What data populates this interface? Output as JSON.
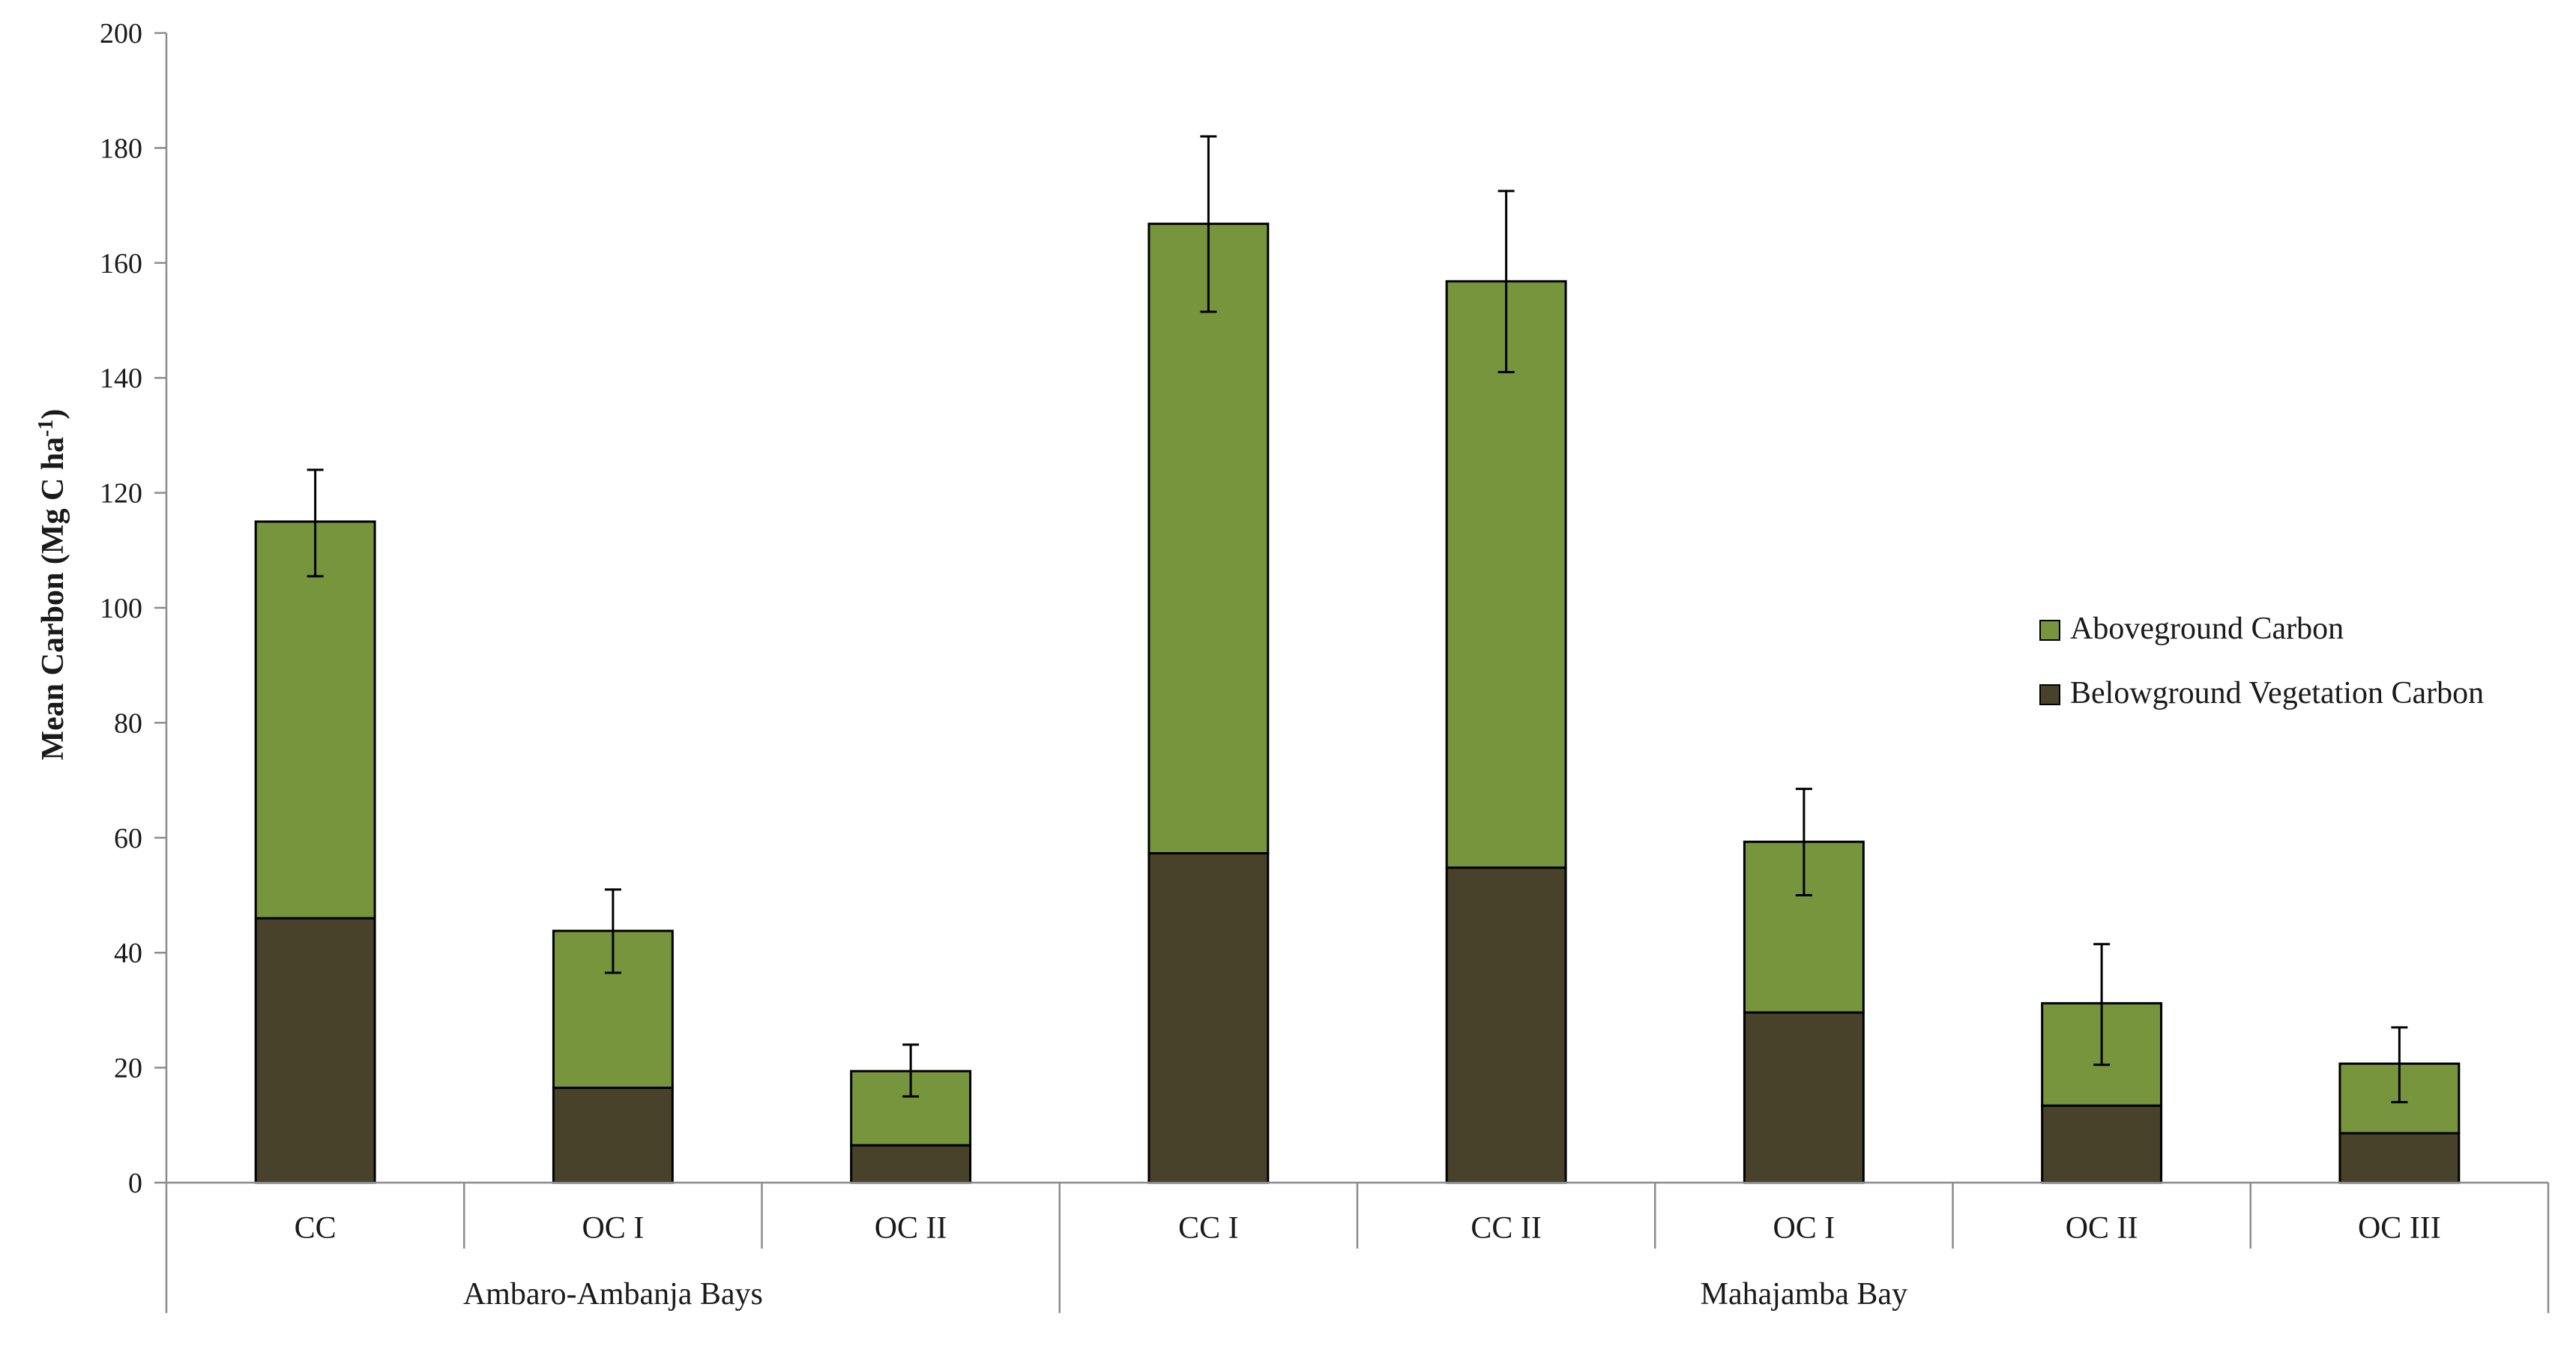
{
  "chart_data": {
    "type": "bar",
    "stacked": true,
    "title": "",
    "xlabel": "",
    "ylabel": "Mean Carbon (Mg C ha",
    "ylabel_superscript": "-1",
    "ylabel_close": ")",
    "ylim": [
      0,
      200
    ],
    "yticks": [
      0,
      20,
      40,
      60,
      80,
      100,
      120,
      140,
      160,
      180,
      200
    ],
    "grid": false,
    "legend_position": "right",
    "categories": [
      "CC",
      "OC I",
      "OC II",
      "CC I",
      "CC II",
      "OC I",
      "OC II",
      "OC III"
    ],
    "groups": [
      {
        "label": "Ambaro-Ambanja Bays",
        "start": 0,
        "end": 2
      },
      {
        "label": "Mahajamba Bay",
        "start": 3,
        "end": 7
      }
    ],
    "series": [
      {
        "name": "Belowground Vegetation Carbon",
        "color": "#48422b",
        "values": [
          46,
          16.5,
          6.5,
          57.3,
          54.8,
          29.6,
          13.4,
          8.6
        ]
      },
      {
        "name": "Aboveground Carbon",
        "color": "#76953d",
        "values": [
          69,
          27.3,
          12.9,
          109.5,
          102,
          29.7,
          17.8,
          12.1
        ]
      }
    ],
    "totals": [
      115,
      43.8,
      19.4,
      166.8,
      156.8,
      59.3,
      31.2,
      20.7
    ],
    "error_bars": {
      "low": [
        105.5,
        36.5,
        15,
        151.5,
        141,
        50,
        20.5,
        14
      ],
      "high": [
        124,
        51,
        24,
        182,
        172.5,
        68.5,
        41.5,
        27
      ]
    }
  }
}
